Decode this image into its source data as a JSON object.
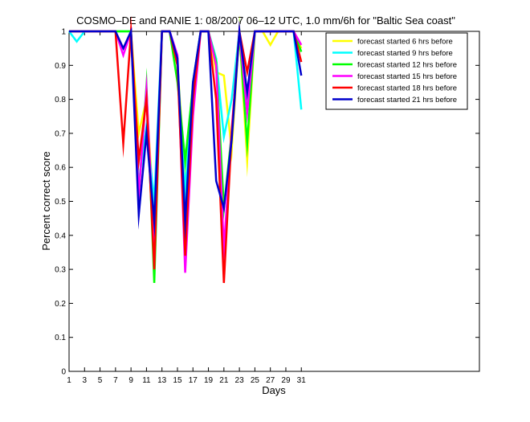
{
  "chart_data": {
    "type": "line",
    "title": "COSMO–DE and RANIE 1: 08/2007 06–12 UTC, 1.0 mm/6h for \"Baltic Sea coast\"",
    "xlabel": "Days",
    "ylabel": "Percent correct score",
    "xlim": [
      1,
      54
    ],
    "ylim": [
      0,
      1
    ],
    "xticks": [
      1,
      3,
      5,
      7,
      9,
      11,
      13,
      15,
      17,
      19,
      21,
      23,
      25,
      27,
      29,
      31
    ],
    "yticks": [
      0,
      0.1,
      0.2,
      0.3,
      0.4,
      0.5,
      0.6,
      0.7,
      0.8,
      0.9,
      1
    ],
    "ytick_labels": [
      "0",
      "0.1",
      "0.2",
      "0.3",
      "0.4",
      "0.5",
      "0.6",
      "0.7",
      "0.8",
      "0.9",
      "1"
    ],
    "grid": false,
    "legend_position": "top-right",
    "x": [
      1,
      2,
      3,
      4,
      5,
      6,
      7,
      8,
      9,
      10,
      11,
      12,
      13,
      14,
      15,
      16,
      17,
      18,
      19,
      20,
      21,
      22,
      23,
      24,
      25,
      26,
      27,
      28,
      29,
      30,
      31
    ],
    "series": [
      {
        "name": "forecast started 6 hrs before",
        "color": "#ffff00",
        "values": [
          1,
          1,
          1,
          1,
          1,
          1,
          1,
          1,
          1,
          0.7,
          0.8,
          0.45,
          1,
          1,
          0.9,
          0.58,
          0.85,
          1,
          1,
          0.88,
          0.87,
          0.65,
          1,
          0.62,
          1,
          1,
          0.96,
          1,
          1,
          1,
          0.95
        ]
      },
      {
        "name": "forecast started 9 hrs before",
        "color": "#00ffff",
        "values": [
          1,
          0.97,
          1,
          1,
          1,
          1,
          1,
          1,
          1,
          0.55,
          0.72,
          0.5,
          1,
          1,
          0.9,
          0.53,
          0.85,
          1,
          1,
          0.92,
          0.69,
          0.8,
          1,
          0.77,
          1,
          1,
          1,
          1,
          1,
          1,
          0.77
        ]
      },
      {
        "name": "forecast started 12 hrs before",
        "color": "#00ff00",
        "values": [
          1,
          1,
          1,
          1,
          1,
          1,
          1,
          1,
          1,
          0.52,
          0.84,
          0.26,
          1,
          1,
          0.85,
          0.62,
          0.84,
          1,
          1,
          0.91,
          0.48,
          0.7,
          1,
          0.67,
          1,
          1,
          1,
          1,
          1,
          1,
          0.94
        ]
      },
      {
        "name": "forecast started 15 hrs before",
        "color": "#ff00ff",
        "values": [
          1,
          1,
          1,
          1,
          1,
          1,
          1,
          0.93,
          1,
          0.52,
          0.83,
          0.35,
          1,
          1,
          0.93,
          0.29,
          0.75,
          1,
          1,
          0.9,
          0.36,
          0.71,
          1,
          0.76,
          1,
          1,
          1,
          1,
          1,
          1,
          0.96
        ]
      },
      {
        "name": "forecast started 18 hrs before",
        "color": "#ff0000",
        "values": [
          1,
          1,
          1,
          1,
          1,
          1,
          1,
          0.67,
          1,
          0.62,
          0.8,
          0.3,
          1,
          1,
          0.9,
          0.34,
          0.8,
          1,
          1,
          0.8,
          0.26,
          0.7,
          1,
          0.88,
          1,
          1,
          1,
          1,
          1,
          1,
          0.91
        ]
      },
      {
        "name": "forecast started 21 hrs before",
        "color": "#0000cc",
        "values": [
          1,
          1,
          1,
          1,
          1,
          1,
          1,
          0.95,
          1,
          0.46,
          0.7,
          0.44,
          1,
          1,
          0.92,
          0.44,
          0.85,
          1,
          1,
          0.56,
          0.48,
          0.68,
          1,
          0.82,
          1,
          1,
          1,
          1,
          1,
          1,
          0.87
        ]
      }
    ]
  }
}
